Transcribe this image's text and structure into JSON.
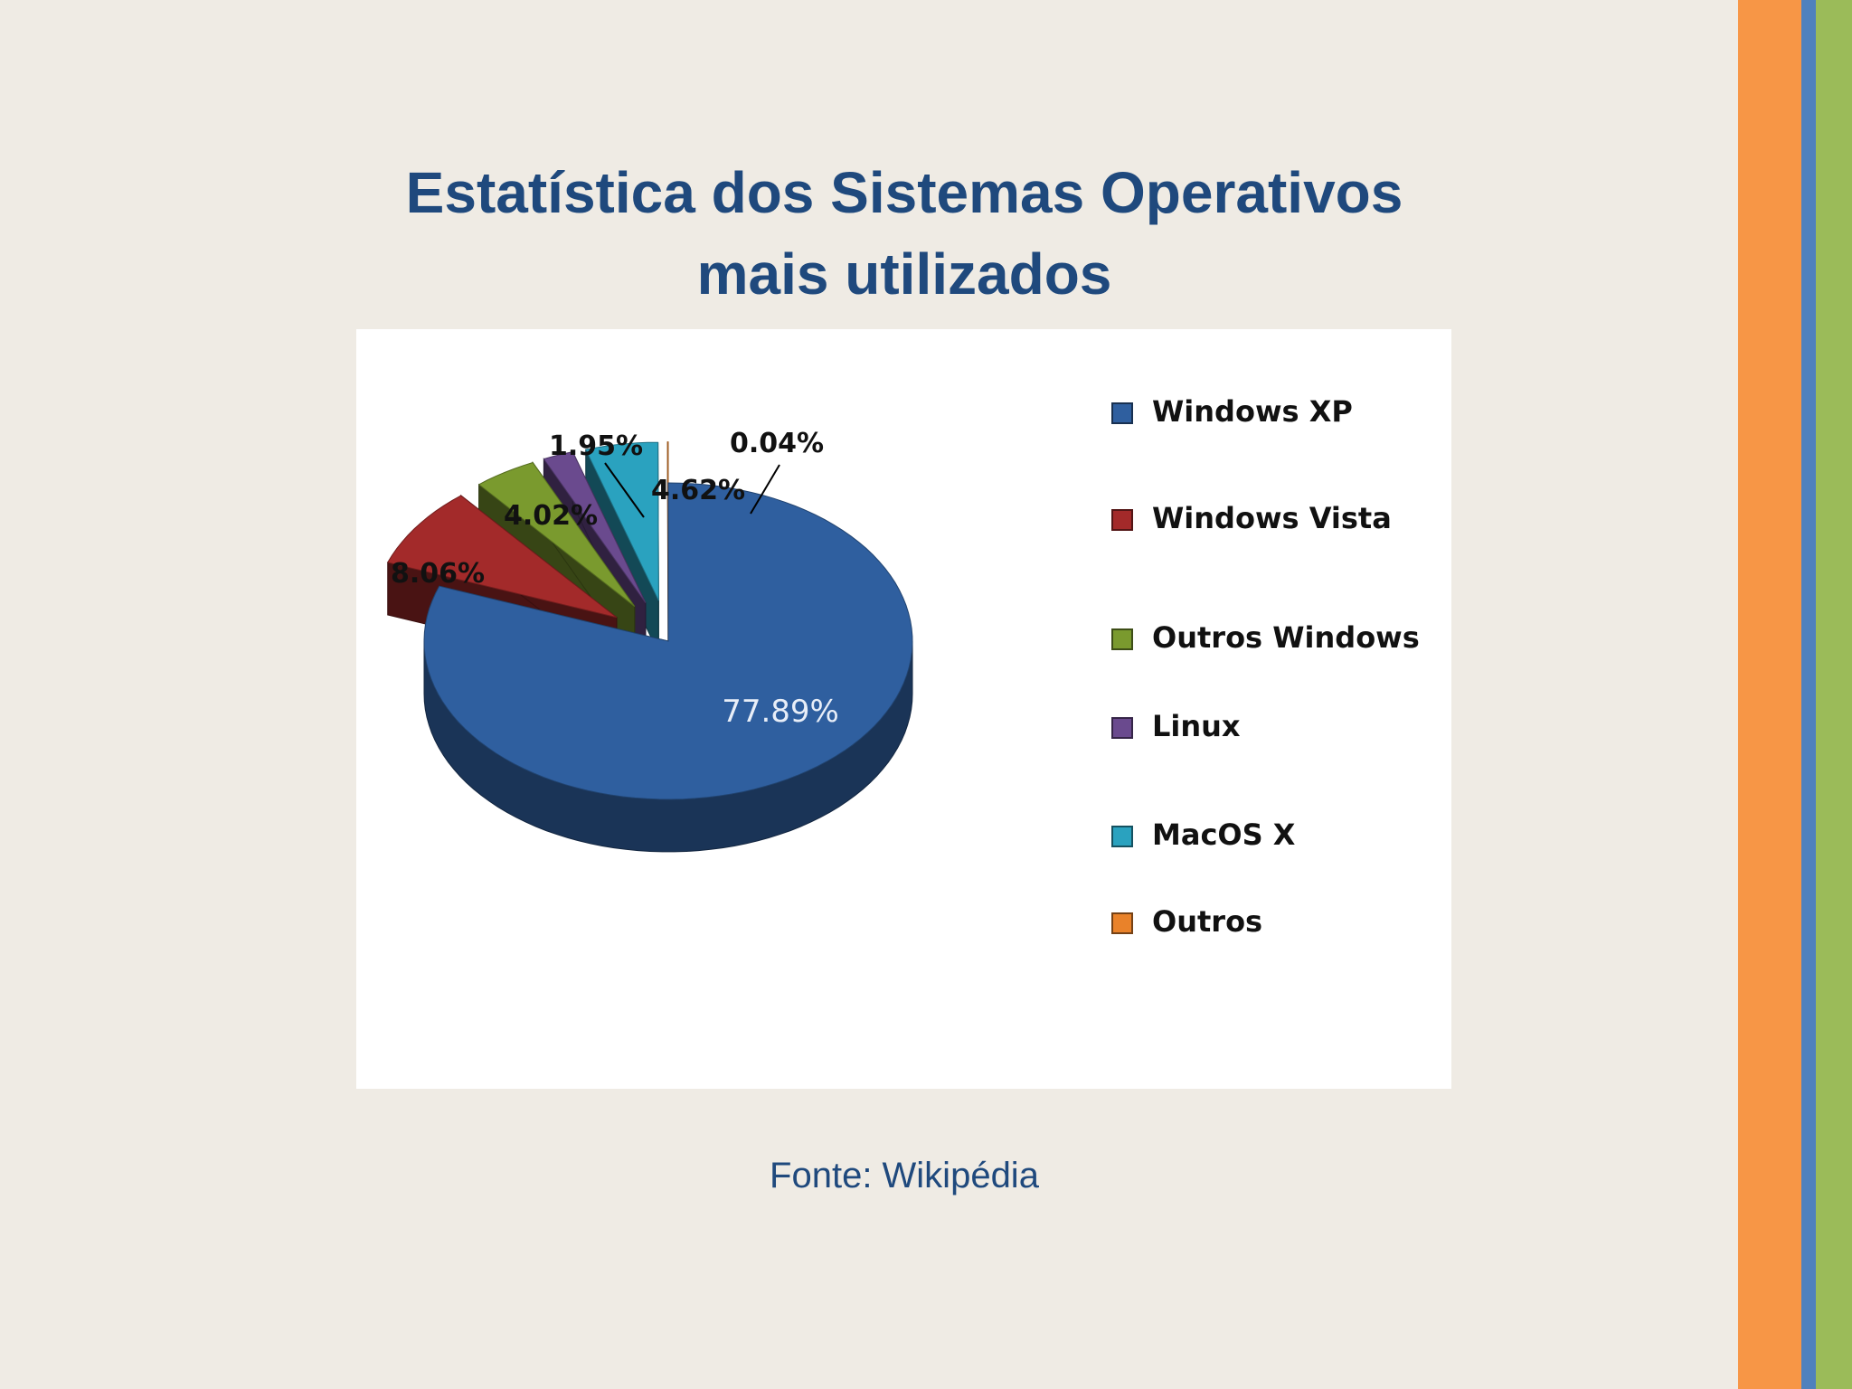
{
  "slide": {
    "title_line1": "Estatística dos Sistemas Operativos",
    "title_line2": "mais utilizados",
    "source": "Fonte: Wikipédia"
  },
  "colors": {
    "background": "#efebe4",
    "title": "#1f497d",
    "stripe_orange": "#f79646",
    "stripe_blue": "#4f81bd",
    "stripe_green": "#9bbb59"
  },
  "chart_data": {
    "type": "pie",
    "style": "3d-exploded",
    "title": "",
    "categories": [
      "Windows XP",
      "Windows Vista",
      "Outros Windows",
      "Linux",
      "MacOS X",
      "Outros"
    ],
    "values": [
      77.89,
      8.06,
      4.02,
      1.95,
      4.62,
      0.04
    ],
    "labels": [
      "77.89%",
      "8.06%",
      "4.02%",
      "1.95%",
      "4.62%",
      "0.04%"
    ],
    "colors": [
      "#2f5f9f",
      "#a32a2a",
      "#7a9a2e",
      "#6a4a8e",
      "#2aa2bf",
      "#e9822a"
    ],
    "legend_position": "right"
  }
}
